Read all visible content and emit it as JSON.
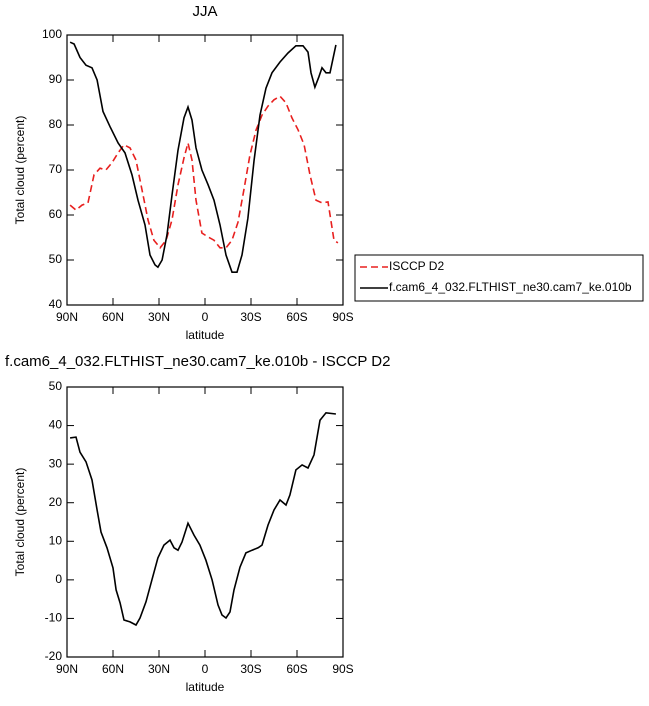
{
  "chart_data": [
    {
      "type": "line",
      "title": "JJA",
      "xlabel": "latitude",
      "ylabel": "Total cloud (percent)",
      "xlim": [
        90,
        -90
      ],
      "ylim": [
        40,
        100
      ],
      "xticks": [
        {
          "value": 90,
          "label": "90N"
        },
        {
          "value": 60,
          "label": "60N"
        },
        {
          "value": 30,
          "label": "30N"
        },
        0,
        {
          "value": -30,
          "label": "30S"
        },
        {
          "value": -60,
          "label": "60S"
        },
        {
          "value": -90,
          "label": "90S"
        }
      ],
      "yticks": [
        40,
        50,
        60,
        70,
        80,
        90,
        100
      ],
      "legend": "right",
      "series": [
        {
          "name": "ISCCP D2",
          "color": "#e8201f",
          "linestyle": "dashed",
          "x": [
            88.0,
            84.1,
            80.2,
            76.3,
            72.4,
            68.5,
            64.6,
            60.7,
            56.7,
            52.8,
            48.9,
            45.0,
            41.1,
            37.2,
            33.3,
            29.3,
            25.4,
            21.5,
            17.6,
            13.7,
            11.1,
            8.5,
            5.9,
            2.0,
            -2.0,
            -5.9,
            -9.8,
            -13.7,
            -17.6,
            -21.5,
            -25.4,
            -29.3,
            -33.3,
            -37.2,
            -41.1,
            -45.0,
            -48.9,
            -52.8,
            -56.7,
            -60.7,
            -64.6,
            -68.5,
            -72.4,
            -76.3,
            -80.2,
            -84.1,
            -86.7
          ],
          "values": [
            62.2,
            61.1,
            62.2,
            62.7,
            68.9,
            70.4,
            70.0,
            71.6,
            73.8,
            75.6,
            74.9,
            72.2,
            65.6,
            58.9,
            54.4,
            52.7,
            54.4,
            58.9,
            66.7,
            72.7,
            76.0,
            72.2,
            63.3,
            56.0,
            55.1,
            54.4,
            52.7,
            52.7,
            54.4,
            58.4,
            65.6,
            73.3,
            78.9,
            82.2,
            84.2,
            85.6,
            86.4,
            84.9,
            81.6,
            78.9,
            75.6,
            68.9,
            63.3,
            62.7,
            62.9,
            54.4,
            53.8
          ]
        },
        {
          "name": "f.cam6_4_032.FLTHIST_ne30.cam7_ke.010b",
          "color": "#000000",
          "linestyle": "solid",
          "x": [
            88.0,
            85.4,
            81.5,
            77.6,
            73.7,
            70.4,
            66.5,
            61.9,
            56.7,
            52.2,
            47.6,
            43.7,
            39.1,
            35.9,
            32.6,
            30.7,
            28.0,
            24.8,
            21.5,
            17.6,
            13.7,
            11.1,
            8.5,
            5.9,
            2.0,
            -2.0,
            -5.9,
            -9.8,
            -13.7,
            -17.6,
            -20.9,
            -24.1,
            -28.0,
            -32.0,
            -35.9,
            -39.8,
            -43.7,
            -48.9,
            -54.1,
            -59.3,
            -63.9,
            -67.2,
            -69.1,
            -71.7,
            -74.3,
            -76.3,
            -78.9,
            -81.5,
            -85.4
          ],
          "values": [
            98.4,
            98.0,
            95.0,
            93.3,
            92.7,
            90.0,
            83.0,
            79.6,
            76.0,
            73.8,
            68.9,
            63.3,
            57.8,
            51.1,
            48.9,
            48.4,
            50.0,
            55.6,
            64.4,
            74.4,
            81.6,
            84.0,
            81.1,
            74.9,
            70.0,
            66.7,
            63.3,
            57.8,
            51.1,
            47.3,
            47.3,
            51.1,
            59.3,
            72.2,
            82.2,
            88.2,
            91.6,
            94.0,
            96.0,
            97.6,
            97.6,
            96.2,
            91.6,
            88.4,
            90.7,
            92.7,
            91.6,
            91.6,
            97.8
          ]
        }
      ]
    },
    {
      "type": "line",
      "title": "f.cam6_4_032.FLTHIST_ne30.cam7_ke.010b - ISCCP D2",
      "xlabel": "latitude",
      "ylabel": "Total cloud (percent)",
      "xlim": [
        90,
        -90
      ],
      "ylim": [
        -20,
        50
      ],
      "xticks": [
        {
          "value": 90,
          "label": "90N"
        },
        {
          "value": 60,
          "label": "60N"
        },
        {
          "value": 30,
          "label": "30N"
        },
        0,
        {
          "value": -30,
          "label": "30S"
        },
        {
          "value": -60,
          "label": "60S"
        },
        {
          "value": -90,
          "label": "90S"
        }
      ],
      "yticks": [
        -20,
        -10,
        0,
        10,
        20,
        30,
        40,
        50
      ],
      "series": [
        {
          "color": "#000000",
          "linestyle": "solid",
          "x": [
            88.0,
            84.1,
            81.5,
            77.6,
            73.7,
            70.4,
            67.8,
            63.9,
            60.0,
            58.0,
            55.4,
            52.8,
            48.9,
            45.0,
            42.4,
            38.5,
            34.6,
            30.7,
            26.8,
            22.8,
            20.2,
            17.6,
            15.0,
            11.1,
            7.2,
            3.3,
            -0.6,
            -4.6,
            -8.5,
            -11.1,
            -13.7,
            -16.3,
            -18.9,
            -22.8,
            -26.7,
            -30.7,
            -34.6,
            -37.2,
            -41.1,
            -45.0,
            -48.9,
            -52.8,
            -55.4,
            -59.3,
            -63.3,
            -67.2,
            -71.1,
            -75.0,
            -78.9,
            -85.4
          ],
          "values": [
            36.8,
            37.0,
            33.1,
            30.6,
            25.9,
            18.1,
            12.4,
            8.3,
            3.1,
            -2.6,
            -6.0,
            -10.4,
            -10.9,
            -11.7,
            -9.9,
            -5.7,
            0.0,
            5.7,
            9.0,
            10.3,
            8.3,
            7.7,
            9.8,
            14.7,
            11.6,
            9.0,
            5.1,
            0.0,
            -6.5,
            -9.1,
            -9.9,
            -8.3,
            -2.6,
            3.3,
            7.0,
            7.7,
            8.3,
            9.0,
            14.2,
            18.1,
            20.7,
            19.4,
            22.0,
            28.5,
            29.8,
            29.0,
            32.4,
            41.4,
            43.3,
            43.0
          ]
        }
      ]
    }
  ]
}
